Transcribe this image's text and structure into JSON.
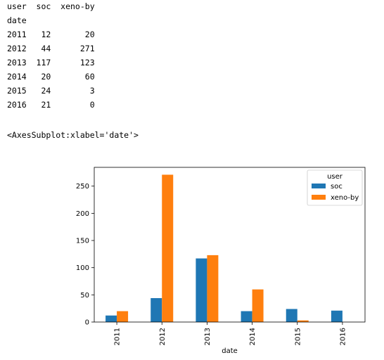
{
  "dataframe": {
    "header_row": "user  soc  xeno-by",
    "index_label": "date",
    "rows": [
      "2011   12       20",
      "2012   44      271",
      "2013  117      123",
      "2014   20       60",
      "2015   24        3",
      "2016   21        0"
    ]
  },
  "output_repr": "<AxesSubplot:xlabel='date'>",
  "chart_data": {
    "type": "bar",
    "categories": [
      "2011",
      "2012",
      "2013",
      "2014",
      "2015",
      "2016"
    ],
    "series": [
      {
        "name": "soc",
        "values": [
          12,
          44,
          117,
          20,
          24,
          21
        ],
        "color": "#1f77b4"
      },
      {
        "name": "xeno-by",
        "values": [
          20,
          271,
          123,
          60,
          3,
          0
        ],
        "color": "#ff7f0e"
      }
    ],
    "xlabel": "date",
    "ylabel": "",
    "ylim": [
      0,
      284.55
    ],
    "yticks": [
      0,
      50,
      100,
      150,
      200,
      250
    ],
    "legend": {
      "title": "user",
      "placement": "top-right"
    },
    "grid": false
  }
}
